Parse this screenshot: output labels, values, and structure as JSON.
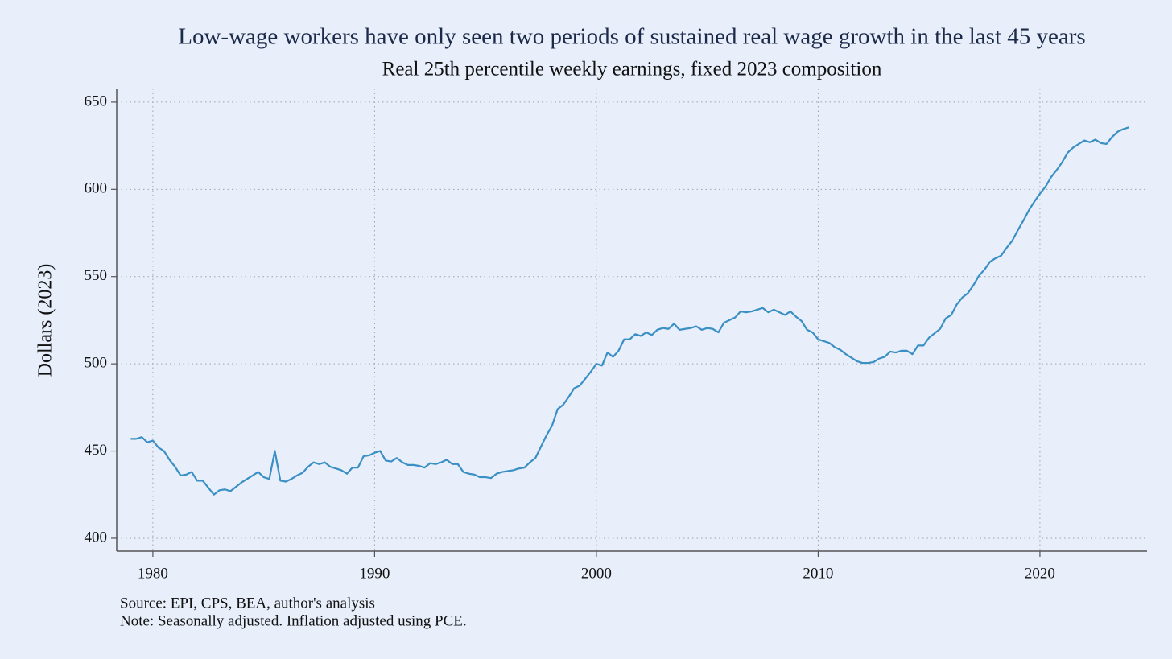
{
  "chart_data": {
    "type": "line",
    "title": "Low-wage workers have only seen two periods of sustained real wage growth in the last 45 years",
    "subtitle": "Real 25th percentile weekly earnings, fixed 2023 composition",
    "y_label": "Dollars (2023)",
    "notes": [
      "Source: EPI, CPS, BEA, author's analysis",
      "Note: Seasonally adjusted. Inflation adjusted using PCE."
    ],
    "x": [
      1979,
      1979.25,
      1979.5,
      1979.75,
      1980,
      1980.25,
      1980.5,
      1980.75,
      1981,
      1981.25,
      1981.5,
      1981.75,
      1982,
      1982.25,
      1982.5,
      1982.75,
      1983,
      1983.25,
      1983.5,
      1983.75,
      1984,
      1984.25,
      1984.5,
      1984.75,
      1985,
      1985.25,
      1985.5,
      1985.75,
      1986,
      1986.25,
      1986.5,
      1986.75,
      1987,
      1987.25,
      1987.5,
      1987.75,
      1988,
      1988.25,
      1988.5,
      1988.75,
      1989,
      1989.25,
      1989.5,
      1989.75,
      1990,
      1990.25,
      1990.5,
      1990.75,
      1991,
      1991.25,
      1991.5,
      1991.75,
      1992,
      1992.25,
      1992.5,
      1992.75,
      1993,
      1993.25,
      1993.5,
      1993.75,
      1994,
      1994.25,
      1994.5,
      1994.75,
      1995,
      1995.25,
      1995.5,
      1995.75,
      1996,
      1996.25,
      1996.5,
      1996.75,
      1997,
      1997.25,
      1997.5,
      1997.75,
      1998,
      1998.25,
      1998.5,
      1998.75,
      1999,
      1999.25,
      1999.5,
      1999.75,
      2000,
      2000.25,
      2000.5,
      2000.75,
      2001,
      2001.25,
      2001.5,
      2001.75,
      2002,
      2002.25,
      2002.5,
      2002.75,
      2003,
      2003.25,
      2003.5,
      2003.75,
      2004,
      2004.25,
      2004.5,
      2004.75,
      2005,
      2005.25,
      2005.5,
      2005.75,
      2006,
      2006.25,
      2006.5,
      2006.75,
      2007,
      2007.25,
      2007.5,
      2007.75,
      2008,
      2008.25,
      2008.5,
      2008.75,
      2009,
      2009.25,
      2009.5,
      2009.75,
      2010,
      2010.25,
      2010.5,
      2010.75,
      2011,
      2011.25,
      2011.5,
      2011.75,
      2012,
      2012.25,
      2012.5,
      2012.75,
      2013,
      2013.25,
      2013.5,
      2013.75,
      2014,
      2014.25,
      2014.5,
      2014.75,
      2015,
      2015.25,
      2015.5,
      2015.75,
      2016,
      2016.25,
      2016.5,
      2016.75,
      2017,
      2017.25,
      2017.5,
      2017.75,
      2018,
      2018.25,
      2018.5,
      2018.75,
      2019,
      2019.25,
      2019.5,
      2019.75,
      2020,
      2020.25,
      2020.5,
      2020.75,
      2021,
      2021.25,
      2021.5,
      2021.75,
      2022,
      2022.25,
      2022.5,
      2022.75,
      2023,
      2023.25,
      2023.5,
      2023.75,
      2024
    ],
    "series": [
      {
        "color": "#3a8fc4",
        "values": [
          457,
          457,
          458,
          455,
          456,
          452,
          450,
          445,
          441,
          436,
          436.5,
          438,
          433,
          433,
          429,
          425,
          427.5,
          428,
          427,
          429.5,
          432,
          434,
          436,
          438,
          435,
          434,
          450,
          433,
          432.5,
          434,
          436,
          437.5,
          441,
          443.5,
          442.5,
          443.5,
          441,
          440,
          439,
          437,
          440.5,
          440.5,
          447,
          447.5,
          449,
          450,
          444.5,
          444,
          446,
          443.5,
          442,
          442,
          441.5,
          440.5,
          443,
          442.5,
          443.5,
          445,
          442.5,
          442.5,
          438,
          437,
          436.5,
          435,
          435,
          434.5,
          437,
          438,
          438.5,
          439,
          440,
          440.5,
          443.5,
          446,
          452.5,
          459,
          464.5,
          474,
          476.5,
          481,
          486,
          487.5,
          491.5,
          495.5,
          500,
          499,
          506.5,
          504,
          507.5,
          514,
          514,
          517,
          516,
          518,
          516.5,
          519.5,
          520.5,
          520,
          523,
          519.5,
          520,
          520.5,
          521.5,
          519.5,
          520.5,
          520,
          518,
          523.5,
          525,
          526.5,
          530,
          529.5,
          530,
          531,
          532,
          529.5,
          531,
          529.5,
          528,
          530,
          527,
          524.5,
          519.5,
          518,
          514,
          513,
          512,
          509.5,
          508,
          505.5,
          503.5,
          501.5,
          500.5,
          500.5,
          501,
          503,
          504,
          507,
          506.5,
          507.5,
          507.5,
          505.5,
          510.5,
          510.5,
          515,
          517.5,
          520,
          526,
          528,
          534,
          538,
          540.5,
          545,
          550.5,
          554,
          558.5,
          560.5,
          562,
          566.5,
          570.5,
          576.5,
          582,
          588,
          593,
          597.5,
          601.5,
          607,
          611,
          615.5,
          621,
          624,
          626,
          628,
          627,
          628.5,
          626.5,
          626,
          630,
          633,
          634.5,
          635.5
        ]
      }
    ],
    "xlim": [
      1978.37,
      2024.83
    ],
    "xticks": [
      1980,
      1990,
      2000,
      2010,
      2020
    ],
    "ylim": [
      392.6,
      657.8
    ],
    "yticks": [
      400,
      450,
      500,
      550,
      600,
      650
    ],
    "grid": true
  }
}
